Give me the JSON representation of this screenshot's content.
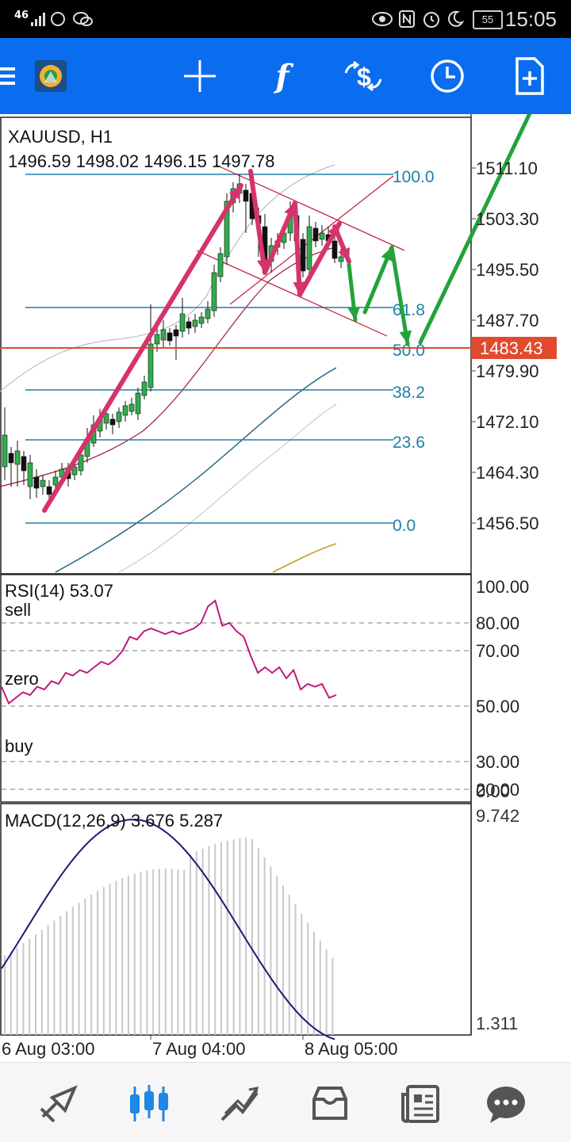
{
  "status_bar": {
    "signal": "46",
    "battery": "55",
    "time": "15:05"
  },
  "toolbar": {
    "icons": [
      "menu-icon",
      "app-logo-icon",
      "crosshair-icon",
      "function-icon",
      "trade-icon",
      "clock-icon",
      "add-page-icon"
    ]
  },
  "chart": {
    "symbol": "XAUUSD, H1",
    "ohlc": "1496.59 1498.02 1496.15 1497.78",
    "price_axis": [
      "1511.10",
      "1503.30",
      "1495.50",
      "1487.70",
      "1479.90",
      "1472.10",
      "1464.30",
      "1456.50"
    ],
    "current_price": "1483.43",
    "fib_levels": [
      "100.0",
      "61.8",
      "50.0",
      "38.2",
      "23.6",
      "0.0"
    ],
    "rsi": {
      "title": "RSI(14)  53.07",
      "axis": [
        "100.00",
        "80.00",
        "70.00",
        "50.00",
        "30.00",
        "20.00",
        "0.00"
      ],
      "sell_label": "sell",
      "zero_label": "zero",
      "buy_label": "buy",
      "values": [
        57,
        51,
        53,
        55,
        54,
        57,
        56,
        59,
        58,
        62,
        61,
        63,
        62,
        64,
        66,
        65,
        67,
        70,
        75,
        74,
        77,
        78,
        77,
        76,
        77,
        76,
        77,
        78,
        80,
        86,
        88,
        79,
        80,
        77,
        75,
        68,
        62,
        64,
        62,
        64,
        60,
        63,
        56,
        58,
        57,
        58,
        53,
        54
      ]
    },
    "macd": {
      "title": "MACD(12,26,9)  3.676  5.287",
      "axis_top": "9.742",
      "axis_bottom": "1.311"
    },
    "time_axis": [
      "6 Aug 03:00",
      "7 Aug 04:00",
      "8 Aug 05:00"
    ],
    "colors": {
      "bull": "#2fae4b",
      "bear": "#111111",
      "fib": "#1f7fa8",
      "price_line": "#e14a2f",
      "pink_arrow": "#d6336c",
      "green_arrow": "#22a33a",
      "rsi_line": "#c2187e",
      "macd_signal": "#1a1a7a",
      "accent": "#0a6df0"
    }
  },
  "bottom_nav": [
    "quotes-icon",
    "chart-icon",
    "trade-icon",
    "history-icon",
    "news-icon",
    "chat-icon"
  ]
}
